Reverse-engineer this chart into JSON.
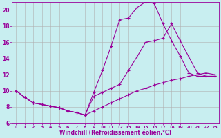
{
  "xlabel": "Windchill (Refroidissement éolien,°C)",
  "bg_color": "#c8eef0",
  "line_color": "#990099",
  "grid_color": "#b0b0b0",
  "xlim": [
    -0.5,
    23.5
  ],
  "ylim": [
    6,
    21
  ],
  "yticks": [
    6,
    8,
    10,
    12,
    14,
    16,
    18,
    20
  ],
  "xticks": [
    0,
    1,
    2,
    3,
    4,
    5,
    6,
    7,
    8,
    9,
    10,
    11,
    12,
    13,
    14,
    15,
    16,
    17,
    18,
    19,
    20,
    21,
    22,
    23
  ],
  "series1_x": [
    0,
    1,
    2,
    3,
    4,
    5,
    6,
    7,
    8,
    9,
    10,
    11,
    12,
    13,
    14,
    15,
    16,
    17,
    18,
    19,
    20,
    21,
    22,
    23
  ],
  "series1_y": [
    10.0,
    9.2,
    8.5,
    8.3,
    8.1,
    7.9,
    7.5,
    7.3,
    7.0,
    7.5,
    8.0,
    8.5,
    9.0,
    9.5,
    10.0,
    10.3,
    10.7,
    11.0,
    11.3,
    11.5,
    11.8,
    12.0,
    12.2,
    12.0
  ],
  "series2_x": [
    0,
    1,
    2,
    3,
    4,
    5,
    6,
    7,
    8,
    9,
    10,
    11,
    12,
    13,
    14,
    15,
    16,
    17,
    18,
    19,
    20,
    21,
    22,
    23
  ],
  "series2_y": [
    10.0,
    9.2,
    8.5,
    8.3,
    8.1,
    7.9,
    7.5,
    7.3,
    7.0,
    9.8,
    12.5,
    15.5,
    18.8,
    19.0,
    20.3,
    21.0,
    20.8,
    18.3,
    16.2,
    14.3,
    12.2,
    11.8,
    11.8,
    11.8
  ],
  "series3_x": [
    0,
    1,
    2,
    3,
    4,
    5,
    6,
    7,
    8,
    9,
    10,
    11,
    12,
    13,
    14,
    15,
    16,
    17,
    18,
    19,
    20,
    21,
    22,
    23
  ],
  "series3_y": [
    10.0,
    9.2,
    8.5,
    8.3,
    8.1,
    7.9,
    7.5,
    7.3,
    7.0,
    9.3,
    9.8,
    10.3,
    10.8,
    12.5,
    14.2,
    16.0,
    16.2,
    16.5,
    18.3,
    16.2,
    14.2,
    12.2,
    11.8,
    11.8
  ]
}
